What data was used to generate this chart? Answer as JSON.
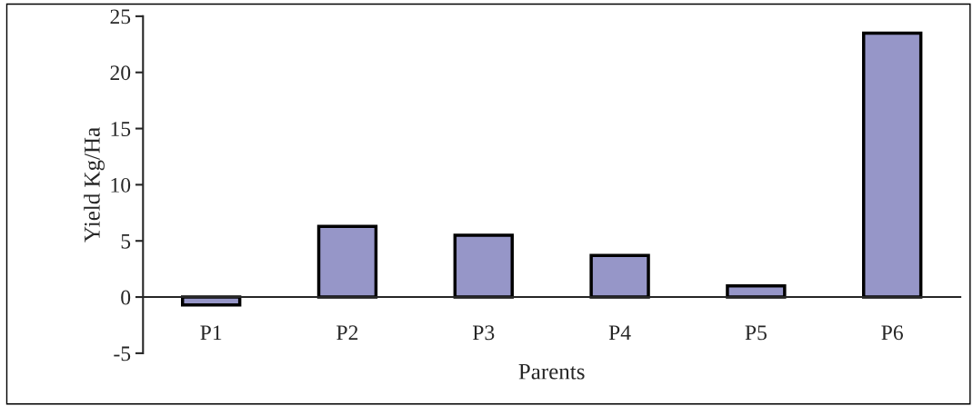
{
  "chart_data": {
    "type": "bar",
    "xlabel": "Parents",
    "ylabel": "Yield Kg/Ha",
    "categories": [
      "P1",
      "P2",
      "P3",
      "P4",
      "P5",
      "P6"
    ],
    "values": [
      -0.7,
      6.3,
      5.5,
      3.7,
      1.0,
      23.5
    ],
    "color": "#9696c8",
    "ylim": [
      -5,
      25
    ],
    "yticks": [
      -5,
      0,
      5,
      10,
      15,
      20,
      25
    ],
    "grid": false,
    "legend": false
  }
}
